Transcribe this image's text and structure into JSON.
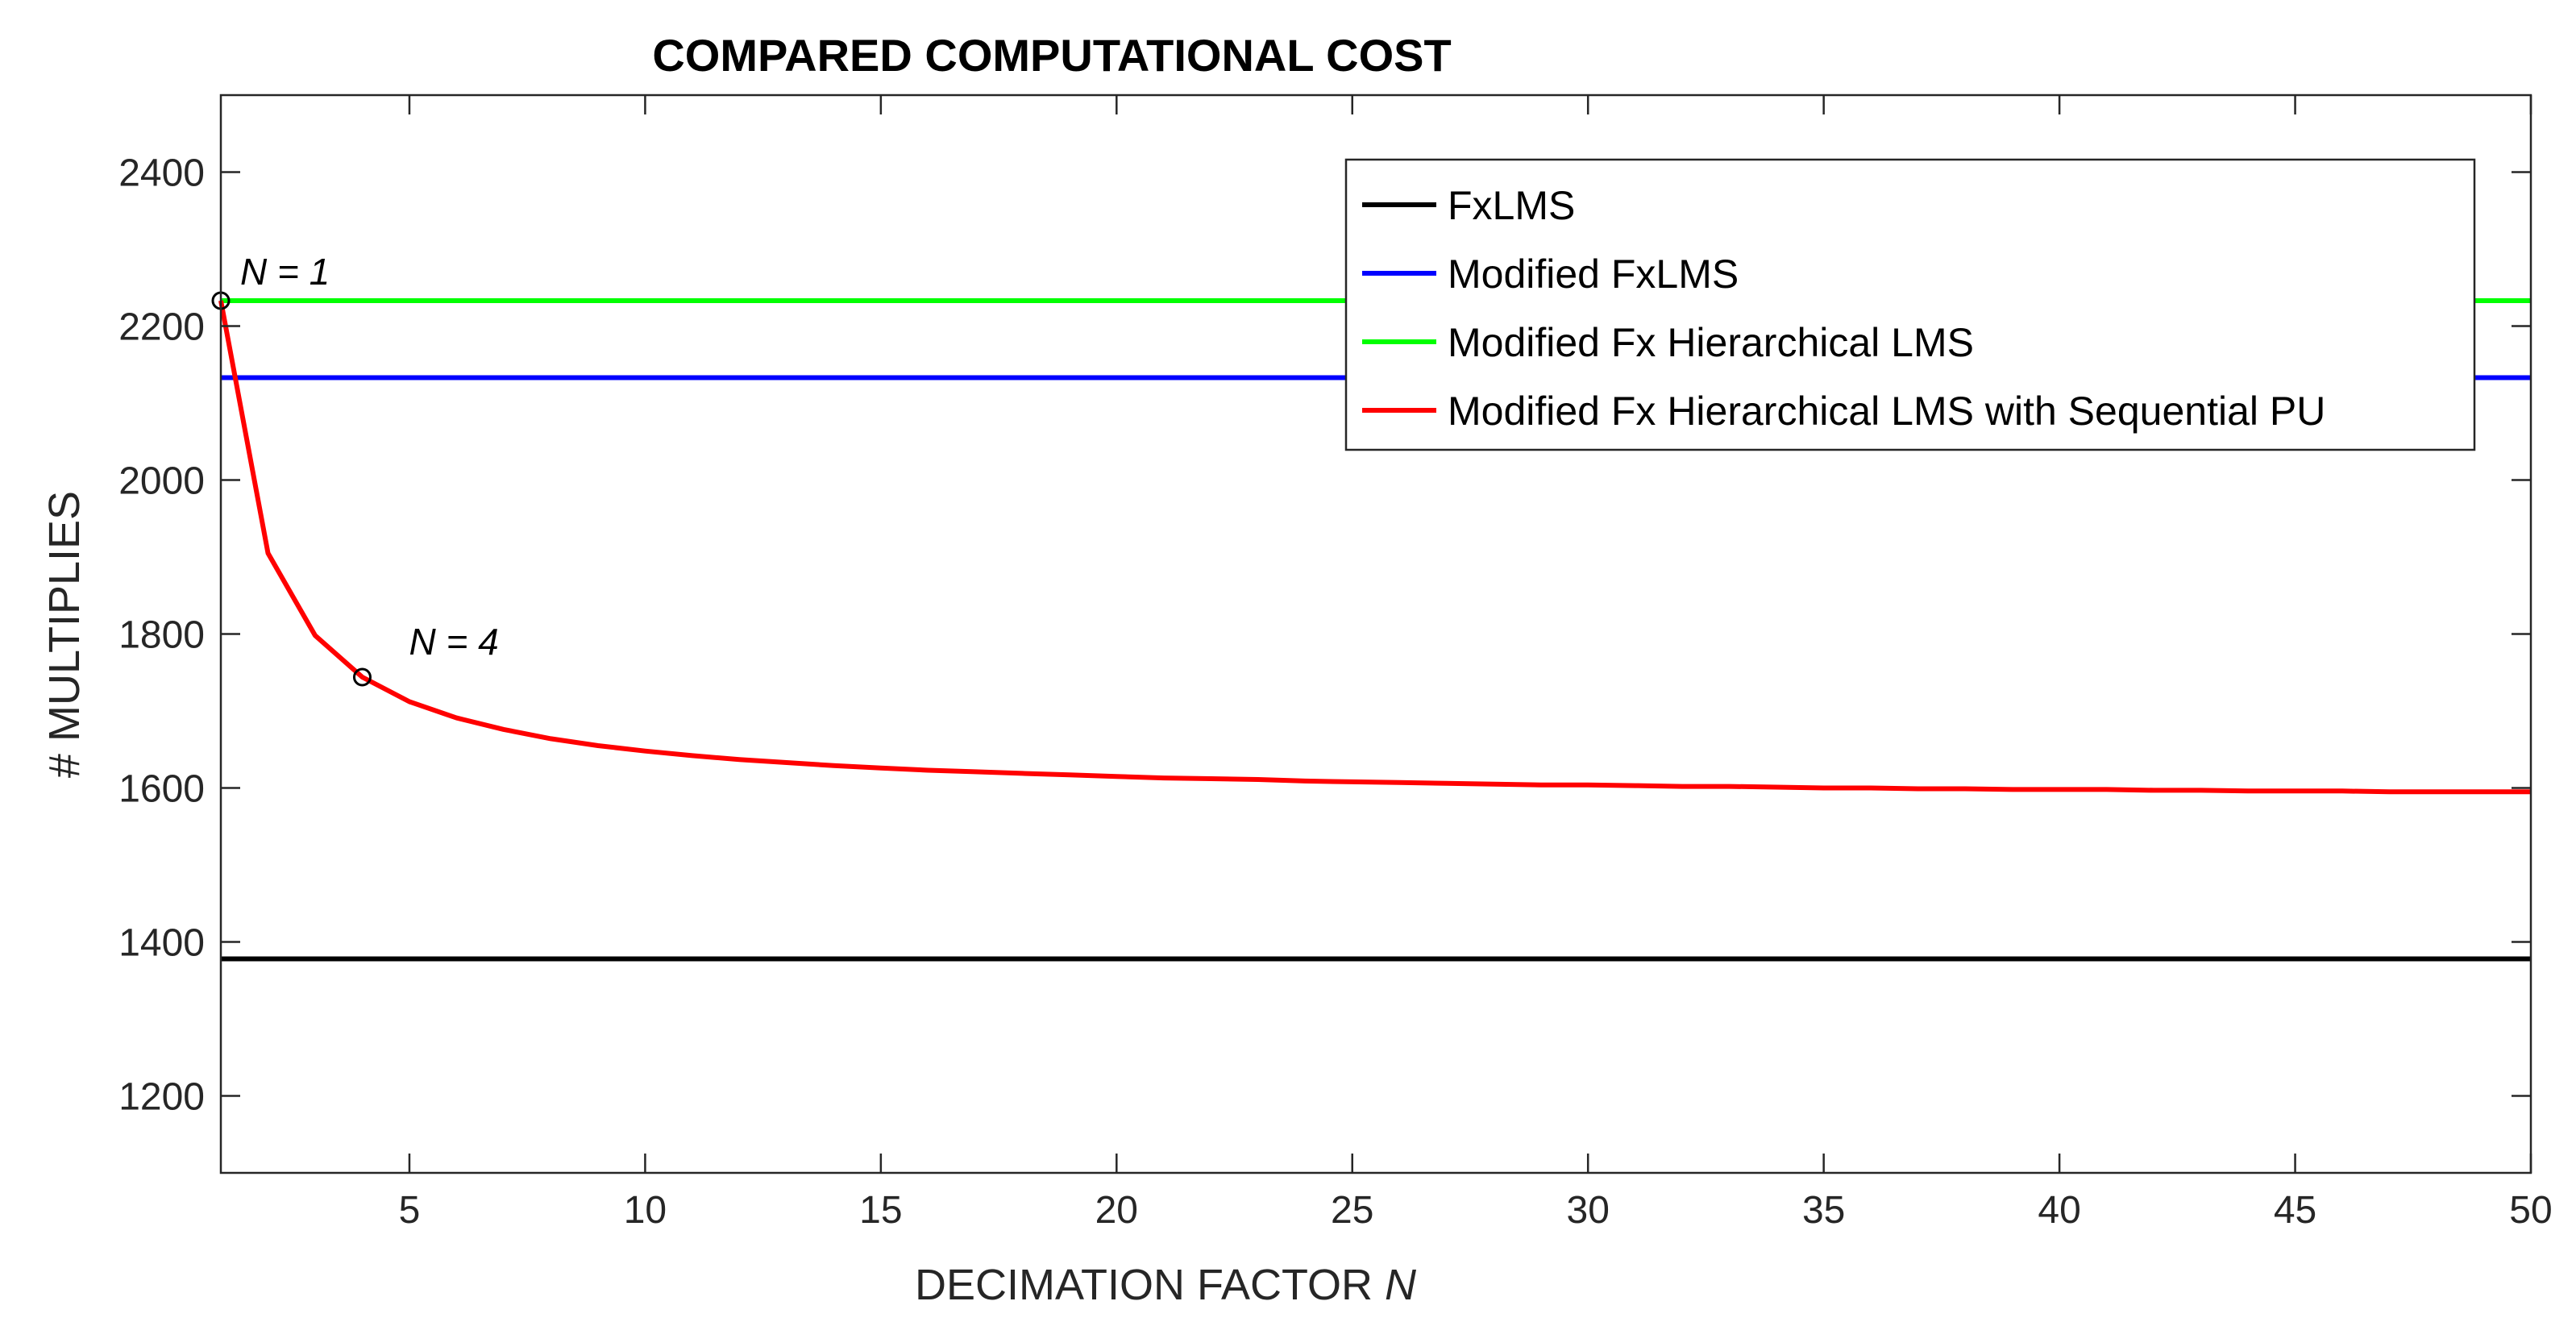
{
  "chart_data": {
    "type": "line",
    "title": "COMPARED COMPUTATIONAL COST",
    "xlabel": "DECIMATION FACTOR ",
    "xlabel_var": "N",
    "ylabel": "# MULTIPLIES",
    "xlim": [
      1,
      50
    ],
    "ylim": [
      1100,
      2500
    ],
    "xticks": [
      5,
      10,
      15,
      20,
      25,
      30,
      35,
      40,
      45,
      50
    ],
    "yticks": [
      1200,
      1400,
      1600,
      1800,
      2000,
      2200,
      2400
    ],
    "grid": false,
    "legend_position": "top-right",
    "series": [
      {
        "name": "FxLMS",
        "color": "#000000",
        "x": [
          1,
          50
        ],
        "values": [
          1378,
          1378
        ]
      },
      {
        "name": "Modified FxLMS",
        "color": "#0000ff",
        "x": [
          1,
          50
        ],
        "values": [
          2133,
          2133
        ]
      },
      {
        "name": "Modified Fx Hierarchical LMS",
        "color": "#00ff00",
        "x": [
          1,
          50
        ],
        "values": [
          2233,
          2233
        ]
      },
      {
        "name": "Modified Fx Hierarchical LMS with Sequential PU",
        "color": "#ff0000",
        "x": [
          1,
          2,
          3,
          4,
          5,
          6,
          7,
          8,
          9,
          10,
          11,
          12,
          13,
          14,
          15,
          16,
          17,
          18,
          19,
          20,
          21,
          22,
          23,
          24,
          25,
          26,
          27,
          28,
          29,
          30,
          31,
          32,
          33,
          34,
          35,
          36,
          37,
          38,
          39,
          40,
          41,
          42,
          43,
          44,
          45,
          46,
          47,
          48,
          49,
          50
        ],
        "values": [
          2233,
          1905,
          1798,
          1744,
          1712,
          1691,
          1676,
          1664,
          1655,
          1648,
          1642,
          1637,
          1633,
          1629,
          1626,
          1623,
          1621,
          1619,
          1617,
          1615,
          1613,
          1612,
          1611,
          1609,
          1608,
          1607,
          1606,
          1605,
          1604,
          1604,
          1603,
          1602,
          1602,
          1601,
          1600,
          1600,
          1599,
          1599,
          1598,
          1598,
          1598,
          1597,
          1597,
          1596,
          1596,
          1596,
          1595,
          1595,
          1595,
          1595
        ]
      }
    ],
    "annotations": [
      {
        "var": "N",
        "text": " = 1",
        "x": 1,
        "y": 2233
      },
      {
        "var": "N",
        "text": " = 4",
        "x": 4,
        "y": 1744
      }
    ]
  }
}
